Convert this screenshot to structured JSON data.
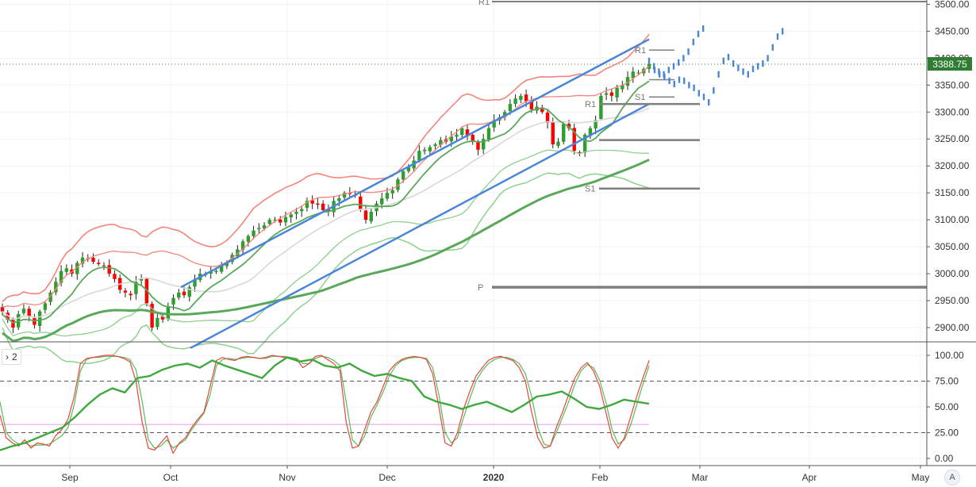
{
  "colors": {
    "up": "#2e9e2e",
    "down": "#ff0000",
    "channel": "#4a86d8",
    "projection": "#4a86d8",
    "band_outer": "#f4857a",
    "band_inner_green": "#8fd08f",
    "ma_long": "#5aa85a",
    "ma_gray": "#d8d8d8",
    "pivot": "#7f7f7f",
    "stoch_k": "#e8453c",
    "stoch_d": "#5aba5a",
    "rsi": "#3fa83f",
    "price_tag": "#2e7d32",
    "pink_line": "#e39be6"
  },
  "pane_tag": {
    "icon": "chevron-right-icon",
    "label": "2"
  },
  "price_tag": "3388.75",
  "auto_label": "A",
  "pivot_labels": {
    "r1_top": "R1",
    "r1_mid": "R1",
    "r1_small": "R1",
    "s1_small": "S1",
    "s1_mid": "S1",
    "p": "P"
  },
  "chart_data": [
    {
      "type": "candlestick",
      "x_ticks": [
        "Sep",
        "Oct",
        "Nov",
        "Dec",
        "2020",
        "Feb",
        "Mar",
        "Apr",
        "May"
      ],
      "y_ticks": [
        "3500.00",
        "3450.00",
        "3400.00",
        "3350.00",
        "3300.00",
        "3250.00",
        "3200.00",
        "3150.00",
        "3100.00",
        "3050.00",
        "3000.00",
        "2950.00",
        "2900.00"
      ],
      "ylim": [
        2875,
        3505
      ],
      "current_price": 3388.75,
      "series_close": [
        2930,
        2915,
        2900,
        2925,
        2935,
        2920,
        2905,
        2930,
        2945,
        2965,
        2985,
        3005,
        3010,
        3000,
        3020,
        3030,
        3028,
        3022,
        3018,
        3015,
        3000,
        2990,
        2970,
        2965,
        2960,
        2985,
        2990,
        2945,
        2900,
        2918,
        2915,
        2940,
        2955,
        2965,
        2960,
        2975,
        2990,
        3000,
        3000,
        3005,
        3005,
        3015,
        3020,
        3035,
        3045,
        3060,
        3070,
        3080,
        3085,
        3090,
        3100,
        3100,
        3095,
        3105,
        3110,
        3115,
        3120,
        3135,
        3130,
        3128,
        3118,
        3115,
        3135,
        3140,
        3150,
        3148,
        3145,
        3120,
        3100,
        3115,
        3130,
        3140,
        3150,
        3155,
        3175,
        3190,
        3198,
        3210,
        3228,
        3230,
        3235,
        3240,
        3248,
        3245,
        3255,
        3258,
        3270,
        3255,
        3245,
        3230,
        3250,
        3270,
        3285,
        3290,
        3300,
        3315,
        3325,
        3330,
        3320,
        3305,
        3310,
        3300,
        3280,
        3240,
        3245,
        3278,
        3270,
        3228,
        3225,
        3258,
        3270,
        3285,
        3330,
        3335,
        3330,
        3345,
        3350,
        3365,
        3375,
        3373,
        3380,
        3389
      ],
      "pivots": [
        {
          "label": "R1",
          "value": 3505
        },
        {
          "label": "R1",
          "value": 3315
        },
        {
          "label": "",
          "value": 3248
        },
        {
          "label": "S1",
          "value": 3158
        },
        {
          "label": "P",
          "value": 2975
        },
        {
          "label": "R1",
          "value": 3415
        },
        {
          "label": "",
          "value": 3360
        },
        {
          "label": "S1",
          "value": 3328
        }
      ]
    },
    {
      "type": "line",
      "y_ticks": [
        "100.00",
        "75.00",
        "50.00",
        "25.00",
        "0.00"
      ],
      "ylim": [
        0,
        100
      ],
      "levels": [
        75,
        33,
        25
      ],
      "stoch_k": [
        42,
        20,
        15,
        12,
        18,
        10,
        15,
        14,
        12,
        22,
        28,
        38,
        60,
        92,
        97,
        98,
        99,
        100,
        100,
        99,
        97,
        94,
        75,
        35,
        10,
        8,
        15,
        22,
        5,
        15,
        20,
        30,
        38,
        45,
        70,
        95,
        98,
        96,
        95,
        98,
        99,
        98,
        97,
        98,
        100,
        99,
        98,
        97,
        96,
        88,
        92,
        99,
        100,
        96,
        92,
        85,
        35,
        10,
        12,
        28,
        45,
        55,
        70,
        85,
        92,
        96,
        98,
        99,
        98,
        96,
        82,
        50,
        15,
        12,
        25,
        48,
        65,
        80,
        88,
        95,
        98,
        99,
        97,
        95,
        88,
        75,
        45,
        20,
        10,
        12,
        30,
        45,
        62,
        78,
        88,
        93,
        85,
        70,
        45,
        20,
        10,
        20,
        40,
        60,
        78,
        95
      ],
      "stoch_d": [
        55,
        25,
        18,
        14,
        15,
        12,
        13,
        13,
        14,
        18,
        22,
        30,
        52,
        85,
        96,
        98,
        98,
        99,
        99,
        99,
        98,
        96,
        86,
        55,
        18,
        10,
        12,
        18,
        10,
        14,
        18,
        28,
        36,
        44,
        62,
        90,
        96,
        97,
        96,
        97,
        98,
        98,
        97,
        97,
        99,
        99,
        99,
        98,
        97,
        92,
        92,
        97,
        99,
        98,
        95,
        90,
        55,
        18,
        12,
        22,
        40,
        52,
        65,
        80,
        90,
        95,
        97,
        98,
        98,
        97,
        88,
        62,
        25,
        15,
        20,
        40,
        58,
        75,
        85,
        92,
        96,
        98,
        98,
        96,
        92,
        82,
        60,
        30,
        14,
        12,
        25,
        40,
        55,
        72,
        85,
        91,
        88,
        76,
        55,
        28,
        14,
        18,
        32,
        52,
        72,
        90
      ],
      "rsi": [
        8,
        12,
        15,
        20,
        25,
        30,
        40,
        52,
        62,
        68,
        64,
        78,
        80,
        86,
        90,
        92,
        88,
        95,
        90,
        86,
        82,
        78,
        90,
        98,
        94,
        96,
        90,
        88,
        92,
        85,
        80,
        82,
        78,
        75,
        60,
        55,
        52,
        48,
        52,
        55,
        50,
        45,
        52,
        60,
        62,
        65,
        58,
        50,
        48,
        52,
        57,
        55,
        53
      ]
    }
  ]
}
